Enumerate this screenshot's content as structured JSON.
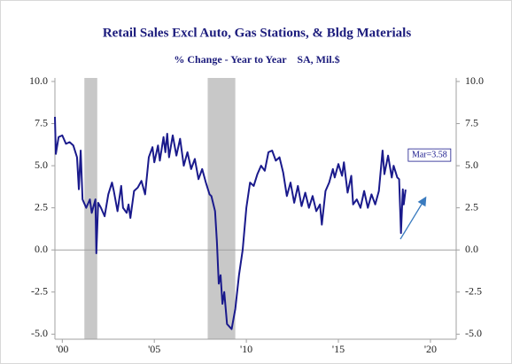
{
  "chart_data": {
    "type": "line",
    "title": "Retail Sales Excl Auto, Gas Stations, & Bldg Materials",
    "subtitle": "% Change - Year to Year    SA, Mil.$",
    "annotation": "Mar=3.58",
    "xlim": [
      1999.6,
      2021.4
    ],
    "ylim": [
      -5.3,
      10
    ],
    "xticks": [
      {
        "value": 2000,
        "label": "'00"
      },
      {
        "value": 2005,
        "label": "'05"
      },
      {
        "value": 2010,
        "label": "'10"
      },
      {
        "value": 2015,
        "label": "'15"
      },
      {
        "value": 2020,
        "label": "'20"
      }
    ],
    "yticks": [
      {
        "value": 10,
        "label": "10.0"
      },
      {
        "value": 7.5,
        "label": "7.5"
      },
      {
        "value": 5,
        "label": "5.0"
      },
      {
        "value": 2.5,
        "label": "2.5"
      },
      {
        "value": 0,
        "label": "0.0"
      },
      {
        "value": -2.5,
        "label": "-2.5"
      },
      {
        "value": -5,
        "label": "-5.0"
      }
    ],
    "recessions": [
      {
        "start": 2001.2,
        "end": 2001.9
      },
      {
        "start": 2007.9,
        "end": 2009.4
      }
    ],
    "recession_color": "#c8c8c8",
    "series": [
      {
        "name": "Retail Sales Excl Auto, Gas Stations, & Bldg Materials",
        "color": "#1a1a8c",
        "x": [
          1999.6,
          1999.65,
          1999.8,
          2000.0,
          2000.2,
          2000.4,
          2000.6,
          2000.8,
          2000.9,
          2001.0,
          2001.1,
          2001.3,
          2001.5,
          2001.6,
          2001.8,
          2001.85,
          2001.95,
          2002.1,
          2002.3,
          2002.5,
          2002.7,
          2002.8,
          2003.0,
          2003.2,
          2003.3,
          2003.5,
          2003.6,
          2003.7,
          2003.9,
          2004.1,
          2004.3,
          2004.5,
          2004.7,
          2004.9,
          2005.0,
          2005.2,
          2005.3,
          2005.5,
          2005.6,
          2005.7,
          2005.8,
          2006.0,
          2006.2,
          2006.4,
          2006.6,
          2006.8,
          2007.0,
          2007.2,
          2007.4,
          2007.6,
          2007.8,
          2008.0,
          2008.1,
          2008.3,
          2008.4,
          2008.5,
          2008.6,
          2008.7,
          2008.8,
          2008.95,
          2009.2,
          2009.4,
          2009.6,
          2009.8,
          2010.0,
          2010.2,
          2010.4,
          2010.6,
          2010.8,
          2011.0,
          2011.2,
          2011.4,
          2011.6,
          2011.8,
          2012.0,
          2012.2,
          2012.4,
          2012.6,
          2012.8,
          2013.0,
          2013.2,
          2013.4,
          2013.6,
          2013.8,
          2014.0,
          2014.1,
          2014.3,
          2014.5,
          2014.7,
          2014.8,
          2015.0,
          2015.2,
          2015.3,
          2015.5,
          2015.7,
          2015.8,
          2016.0,
          2016.2,
          2016.4,
          2016.6,
          2016.8,
          2017.0,
          2017.2,
          2017.4,
          2017.5,
          2017.7,
          2017.9,
          2018.0,
          2018.2,
          2018.3,
          2018.4,
          2018.5,
          2018.55,
          2018.65
        ],
        "values": [
          7.9,
          5.7,
          6.7,
          6.8,
          6.3,
          6.4,
          6.2,
          5.5,
          3.6,
          5.9,
          3.0,
          2.5,
          3.0,
          2.2,
          3.0,
          -0.2,
          2.8,
          2.5,
          2.0,
          3.3,
          4.0,
          3.5,
          2.3,
          3.8,
          2.5,
          2.2,
          2.7,
          1.9,
          3.5,
          3.7,
          4.1,
          3.3,
          5.5,
          6.1,
          5.2,
          6.2,
          5.3,
          6.7,
          5.8,
          6.9,
          5.5,
          6.8,
          5.6,
          6.6,
          5.0,
          5.8,
          4.8,
          5.4,
          4.2,
          4.8,
          4.0,
          3.3,
          3.2,
          2.3,
          0.5,
          -2.0,
          -1.5,
          -3.2,
          -2.5,
          -4.4,
          -4.7,
          -3.5,
          -1.5,
          0.0,
          2.5,
          4.0,
          3.8,
          4.5,
          5.0,
          4.7,
          5.8,
          5.9,
          5.3,
          5.5,
          4.6,
          3.2,
          4.0,
          2.8,
          3.8,
          2.6,
          3.4,
          2.5,
          3.2,
          2.3,
          2.7,
          1.5,
          3.5,
          4.0,
          4.8,
          4.3,
          5.1,
          4.4,
          5.2,
          3.4,
          4.4,
          2.7,
          3.0,
          2.5,
          3.5,
          2.5,
          3.3,
          2.7,
          3.5,
          5.9,
          4.5,
          5.6,
          4.3,
          5.0,
          4.3,
          4.2,
          1.0,
          3.6,
          2.7,
          3.58
        ]
      }
    ]
  }
}
